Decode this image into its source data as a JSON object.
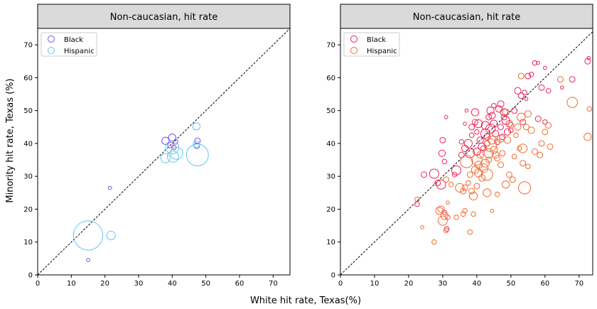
{
  "figure": {
    "ylabel": "Minority hit rate, Texas (%)",
    "xlabel": "White hit rate, Texas(%)"
  },
  "chart_data": [
    {
      "type": "scatter",
      "title": "Non-caucasian, hit rate",
      "xlabel": "",
      "ylabel": "",
      "xlim": [
        0,
        75
      ],
      "ylim": [
        0,
        75
      ],
      "xticks": [
        "0",
        "10",
        "20",
        "30",
        "40",
        "50",
        "60",
        "70"
      ],
      "yticks": [
        "0",
        "10",
        "20",
        "30",
        "40",
        "50",
        "60",
        "70"
      ],
      "diagonal": "y = x dashed",
      "grid": false,
      "legend_position": "top-left",
      "series": [
        {
          "name": "Black",
          "color": "#7b4fe8",
          "points": [
            [
              15.0,
              4.5,
              1
            ],
            [
              21.5,
              26.5,
              1
            ],
            [
              38.0,
              40.8,
              5
            ],
            [
              40.0,
              41.8,
              5
            ],
            [
              41.0,
              40.5,
              2
            ],
            [
              39.5,
              39.5,
              3
            ],
            [
              40.5,
              38.8,
              2
            ],
            [
              47.5,
              40.8,
              3
            ],
            [
              47.3,
              39.3,
              3
            ]
          ]
        },
        {
          "name": "Hispanic",
          "color": "#5fc8f0",
          "points": [
            [
              15.0,
              12.0,
              80
            ],
            [
              21.8,
              12.0,
              7
            ],
            [
              38.0,
              35.5,
              8
            ],
            [
              40.0,
              38.8,
              16
            ],
            [
              40.2,
              36.0,
              12
            ],
            [
              41.3,
              37.0,
              14
            ],
            [
              47.5,
              36.5,
              45
            ],
            [
              47.2,
              45.2,
              5
            ],
            [
              47.2,
              39.8,
              4
            ]
          ]
        }
      ]
    },
    {
      "type": "scatter",
      "title": "Non-caucasian, hit rate",
      "xlabel": "",
      "ylabel": "",
      "xlim": [
        0,
        74
      ],
      "ylim": [
        0,
        75
      ],
      "xticks": [
        "0",
        "10",
        "20",
        "30",
        "40",
        "50",
        "60",
        "70"
      ],
      "yticks": [
        "0",
        "10",
        "20",
        "30",
        "40",
        "50",
        "60",
        "70"
      ],
      "diagonal": "y = x dashed",
      "grid": false,
      "legend_position": "top-left",
      "series": [
        {
          "name": "Black",
          "color": "#e8245a",
          "points": [
            [
              22.5,
              21.5,
              2
            ],
            [
              24.5,
              30.5,
              3
            ],
            [
              27.5,
              30.8,
              8
            ],
            [
              28.5,
              28.0,
              3
            ],
            [
              29.5,
              27.5,
              8
            ],
            [
              29.8,
              37.0,
              4
            ],
            [
              30.0,
              41.0,
              3
            ],
            [
              30.5,
              34.5,
              2
            ],
            [
              31.0,
              48.0,
              1
            ],
            [
              31.2,
              14.0,
              2
            ],
            [
              30.5,
              19.0,
              2
            ],
            [
              33.5,
              30.5,
              2
            ],
            [
              34.0,
              31.8,
              8
            ],
            [
              35.5,
              36.5,
              3
            ],
            [
              35.5,
              40.5,
              2
            ],
            [
              36.5,
              46.0,
              1
            ],
            [
              36.5,
              38.5,
              4
            ],
            [
              37.0,
              50.0,
              1
            ],
            [
              37.5,
              40.0,
              6
            ],
            [
              38.0,
              37.0,
              8
            ],
            [
              38.5,
              42.5,
              2
            ],
            [
              38.5,
              45.0,
              3
            ],
            [
              39.5,
              46.5,
              3
            ],
            [
              39.5,
              49.5,
              5
            ],
            [
              40.0,
              43.5,
              2
            ],
            [
              40.0,
              37.5,
              5
            ],
            [
              40.5,
              46.0,
              6
            ],
            [
              41.0,
              41.0,
              4
            ],
            [
              41.5,
              39.0,
              5
            ],
            [
              42.0,
              38.5,
              3
            ],
            [
              42.5,
              43.0,
              8
            ],
            [
              42.5,
              45.5,
              6
            ],
            [
              43.0,
              42.0,
              4
            ],
            [
              43.0,
              40.0,
              3
            ],
            [
              43.5,
              48.0,
              3
            ],
            [
              44.0,
              44.5,
              8
            ],
            [
              44.0,
              50.0,
              5
            ],
            [
              44.5,
              48.5,
              4
            ],
            [
              45.0,
              51.5,
              2
            ],
            [
              45.0,
              46.0,
              5
            ],
            [
              45.5,
              43.0,
              4
            ],
            [
              46.0,
              40.5,
              3
            ],
            [
              46.5,
              50.5,
              4
            ],
            [
              47.0,
              52.0,
              4
            ],
            [
              47.0,
              45.0,
              3
            ],
            [
              47.5,
              42.0,
              3
            ],
            [
              48.0,
              49.5,
              5
            ],
            [
              48.0,
              48.0,
              3
            ],
            [
              48.5,
              47.0,
              6
            ],
            [
              49.0,
              43.5,
              4
            ],
            [
              49.5,
              46.0,
              4
            ],
            [
              50.0,
              44.0,
              2
            ],
            [
              51.0,
              50.0,
              3
            ],
            [
              52.0,
              56.0,
              4
            ],
            [
              53.0,
              54.5,
              3
            ],
            [
              53.5,
              46.5,
              3
            ],
            [
              54.0,
              55.5,
              2
            ],
            [
              54.5,
              53.5,
              1
            ],
            [
              55.0,
              60.5,
              3
            ],
            [
              56.0,
              61.0,
              2
            ],
            [
              57.0,
              64.5,
              2
            ],
            [
              58.0,
              47.5,
              3
            ],
            [
              58.0,
              64.5,
              1
            ],
            [
              59.0,
              57.0,
              3
            ],
            [
              60.0,
              63.0,
              1
            ],
            [
              60.0,
              46.5,
              2
            ],
            [
              61.0,
              56.0,
              2
            ],
            [
              65.0,
              57.0,
              1
            ],
            [
              68.0,
              59.5,
              3
            ],
            [
              72.5,
              65.0,
              3
            ],
            [
              72.8,
              66.0,
              1
            ]
          ]
        },
        {
          "name": "Hispanic",
          "color": "#f06a2e",
          "points": [
            [
              22.5,
              23.0,
              2
            ],
            [
              24.0,
              14.5,
              1
            ],
            [
              27.5,
              10.0,
              2
            ],
            [
              29.0,
              19.5,
              5
            ],
            [
              29.5,
              20.0,
              4
            ],
            [
              30.0,
              16.5,
              8
            ],
            [
              30.5,
              18.0,
              5
            ],
            [
              31.0,
              13.5,
              2
            ],
            [
              31.5,
              17.5,
              2
            ],
            [
              31.5,
              22.0,
              1
            ],
            [
              31.0,
              29.0,
              3
            ],
            [
              32.5,
              27.5,
              2
            ],
            [
              34.0,
              17.5,
              2
            ],
            [
              35.0,
              26.5,
              7
            ],
            [
              36.0,
              25.5,
              3
            ],
            [
              36.0,
              18.5,
              2
            ],
            [
              36.5,
              19.5,
              2
            ],
            [
              36.5,
              26.5,
              3
            ],
            [
              37.0,
              34.5,
              14
            ],
            [
              37.5,
              28.0,
              2
            ],
            [
              38.0,
              30.5,
              3
            ],
            [
              38.0,
              13.0,
              2
            ],
            [
              38.5,
              25.5,
              3
            ],
            [
              39.0,
              24.0,
              6
            ],
            [
              39.0,
              18.5,
              2
            ],
            [
              39.5,
              32.0,
              5
            ],
            [
              40.0,
              35.0,
              10
            ],
            [
              40.0,
              27.0,
              3
            ],
            [
              40.5,
              31.0,
              6
            ],
            [
              40.5,
              33.5,
              5
            ],
            [
              41.0,
              36.5,
              4
            ],
            [
              41.5,
              29.5,
              4
            ],
            [
              42.0,
              32.5,
              7
            ],
            [
              42.5,
              34.0,
              6
            ],
            [
              43.0,
              30.5,
              12
            ],
            [
              43.0,
              25.0,
              6
            ],
            [
              43.5,
              37.0,
              8
            ],
            [
              43.5,
              35.0,
              3
            ],
            [
              44.0,
              39.5,
              15
            ],
            [
              44.5,
              41.0,
              6
            ],
            [
              44.5,
              19.5,
              1
            ],
            [
              45.0,
              38.0,
              5
            ],
            [
              45.5,
              36.5,
              4
            ],
            [
              46.0,
              35.5,
              3
            ],
            [
              46.0,
              24.5,
              2
            ],
            [
              47.0,
              41.5,
              5
            ],
            [
              47.0,
              33.5,
              3
            ],
            [
              47.5,
              37.0,
              3
            ],
            [
              48.5,
              27.5,
              5
            ],
            [
              48.5,
              49.5,
              4
            ],
            [
              49.0,
              41.0,
              4
            ],
            [
              49.5,
              30.5,
              3
            ],
            [
              50.0,
              45.5,
              3
            ],
            [
              50.5,
              29.0,
              3
            ],
            [
              51.0,
              36.0,
              2
            ],
            [
              51.5,
              42.5,
              2
            ],
            [
              52.0,
              45.0,
              4
            ],
            [
              52.5,
              38.5,
              2
            ],
            [
              53.0,
              48.0,
              6
            ],
            [
              53.5,
              38.5,
              7
            ],
            [
              53.5,
              34.0,
              3
            ],
            [
              54.0,
              26.5,
              14
            ],
            [
              54.5,
              45.0,
              3
            ],
            [
              55.0,
              49.0,
              4
            ],
            [
              55.0,
              33.0,
              2
            ],
            [
              56.0,
              44.0,
              4
            ],
            [
              57.0,
              37.5,
              3
            ],
            [
              58.5,
              36.5,
              3
            ],
            [
              59.0,
              40.0,
              3
            ],
            [
              60.0,
              43.5,
              3
            ],
            [
              61.0,
              45.5,
              3
            ],
            [
              61.5,
              39.0,
              3
            ],
            [
              53.0,
              60.5,
              3
            ],
            [
              64.5,
              59.5,
              3
            ],
            [
              68.0,
              52.5,
              10
            ],
            [
              72.5,
              42.0,
              5
            ],
            [
              73.0,
              50.5,
              2
            ]
          ]
        }
      ]
    }
  ]
}
